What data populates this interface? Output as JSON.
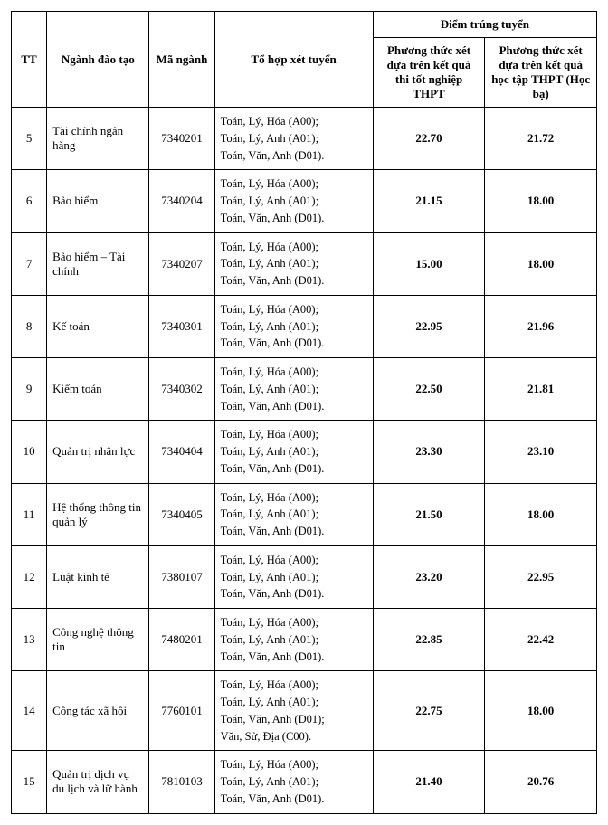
{
  "headers": {
    "tt": "TT",
    "nganh": "Ngành đào tạo",
    "ma": "Mã ngành",
    "tohop": "Tổ hợp xét tuyển",
    "diem_group": "Điểm trúng tuyển",
    "score1": "Phương thức xét dựa trên kết quả thi tốt nghiệp THPT",
    "score2": "Phương thức xét dựa trên kết quả học tập THPT (Học bạ)"
  },
  "combo_std": [
    "Toán, Lý, Hóa (A00);",
    "Toán, Lý, Anh (A01);",
    "Toán, Văn, Anh (D01)."
  ],
  "combo_14": [
    "Toán, Lý, Hóa (A00);",
    "Toán, Lý, Anh (A01);",
    "Toán, Văn, Anh (D01);",
    "Văn, Sử, Địa (C00)."
  ],
  "rows": [
    {
      "tt": "5",
      "nganh": "Tài chính ngân hàng",
      "ma": "7340201",
      "combo": "std",
      "s1": "22.70",
      "s2": "21.72"
    },
    {
      "tt": "6",
      "nganh": "Bảo hiểm",
      "ma": "7340204",
      "combo": "std",
      "s1": "21.15",
      "s2": "18.00"
    },
    {
      "tt": "7",
      "nganh": "Bảo hiểm – Tài chính",
      "ma": "7340207",
      "combo": "std",
      "s1": "15.00",
      "s2": "18.00"
    },
    {
      "tt": "8",
      "nganh": "Kế toán",
      "ma": "7340301",
      "combo": "std",
      "s1": "22.95",
      "s2": "21.96"
    },
    {
      "tt": "9",
      "nganh": "Kiểm toán",
      "ma": "7340302",
      "combo": "std",
      "s1": "22.50",
      "s2": "21.81"
    },
    {
      "tt": "10",
      "nganh": "Quản trị nhân lực",
      "ma": "7340404",
      "combo": "std",
      "s1": "23.30",
      "s2": "23.10"
    },
    {
      "tt": "11",
      "nganh": "Hệ thống thông tin quản lý",
      "ma": "7340405",
      "combo": "std",
      "s1": "21.50",
      "s2": "18.00"
    },
    {
      "tt": "12",
      "nganh": "Luật kinh tế",
      "ma": "7380107",
      "combo": "std",
      "s1": "23.20",
      "s2": "22.95"
    },
    {
      "tt": "13",
      "nganh": "Công nghệ thông tin",
      "ma": "7480201",
      "combo": "std",
      "s1": "22.85",
      "s2": "22.42"
    },
    {
      "tt": "14",
      "nganh": "Công tác xã hội",
      "ma": "7760101",
      "combo": "c14",
      "s1": "22.75",
      "s2": "18.00"
    },
    {
      "tt": "15",
      "nganh": "Quản trị dịch vụ du lịch và lữ hành",
      "ma": "7810103",
      "combo": "std",
      "s1": "21.40",
      "s2": "20.76"
    }
  ]
}
